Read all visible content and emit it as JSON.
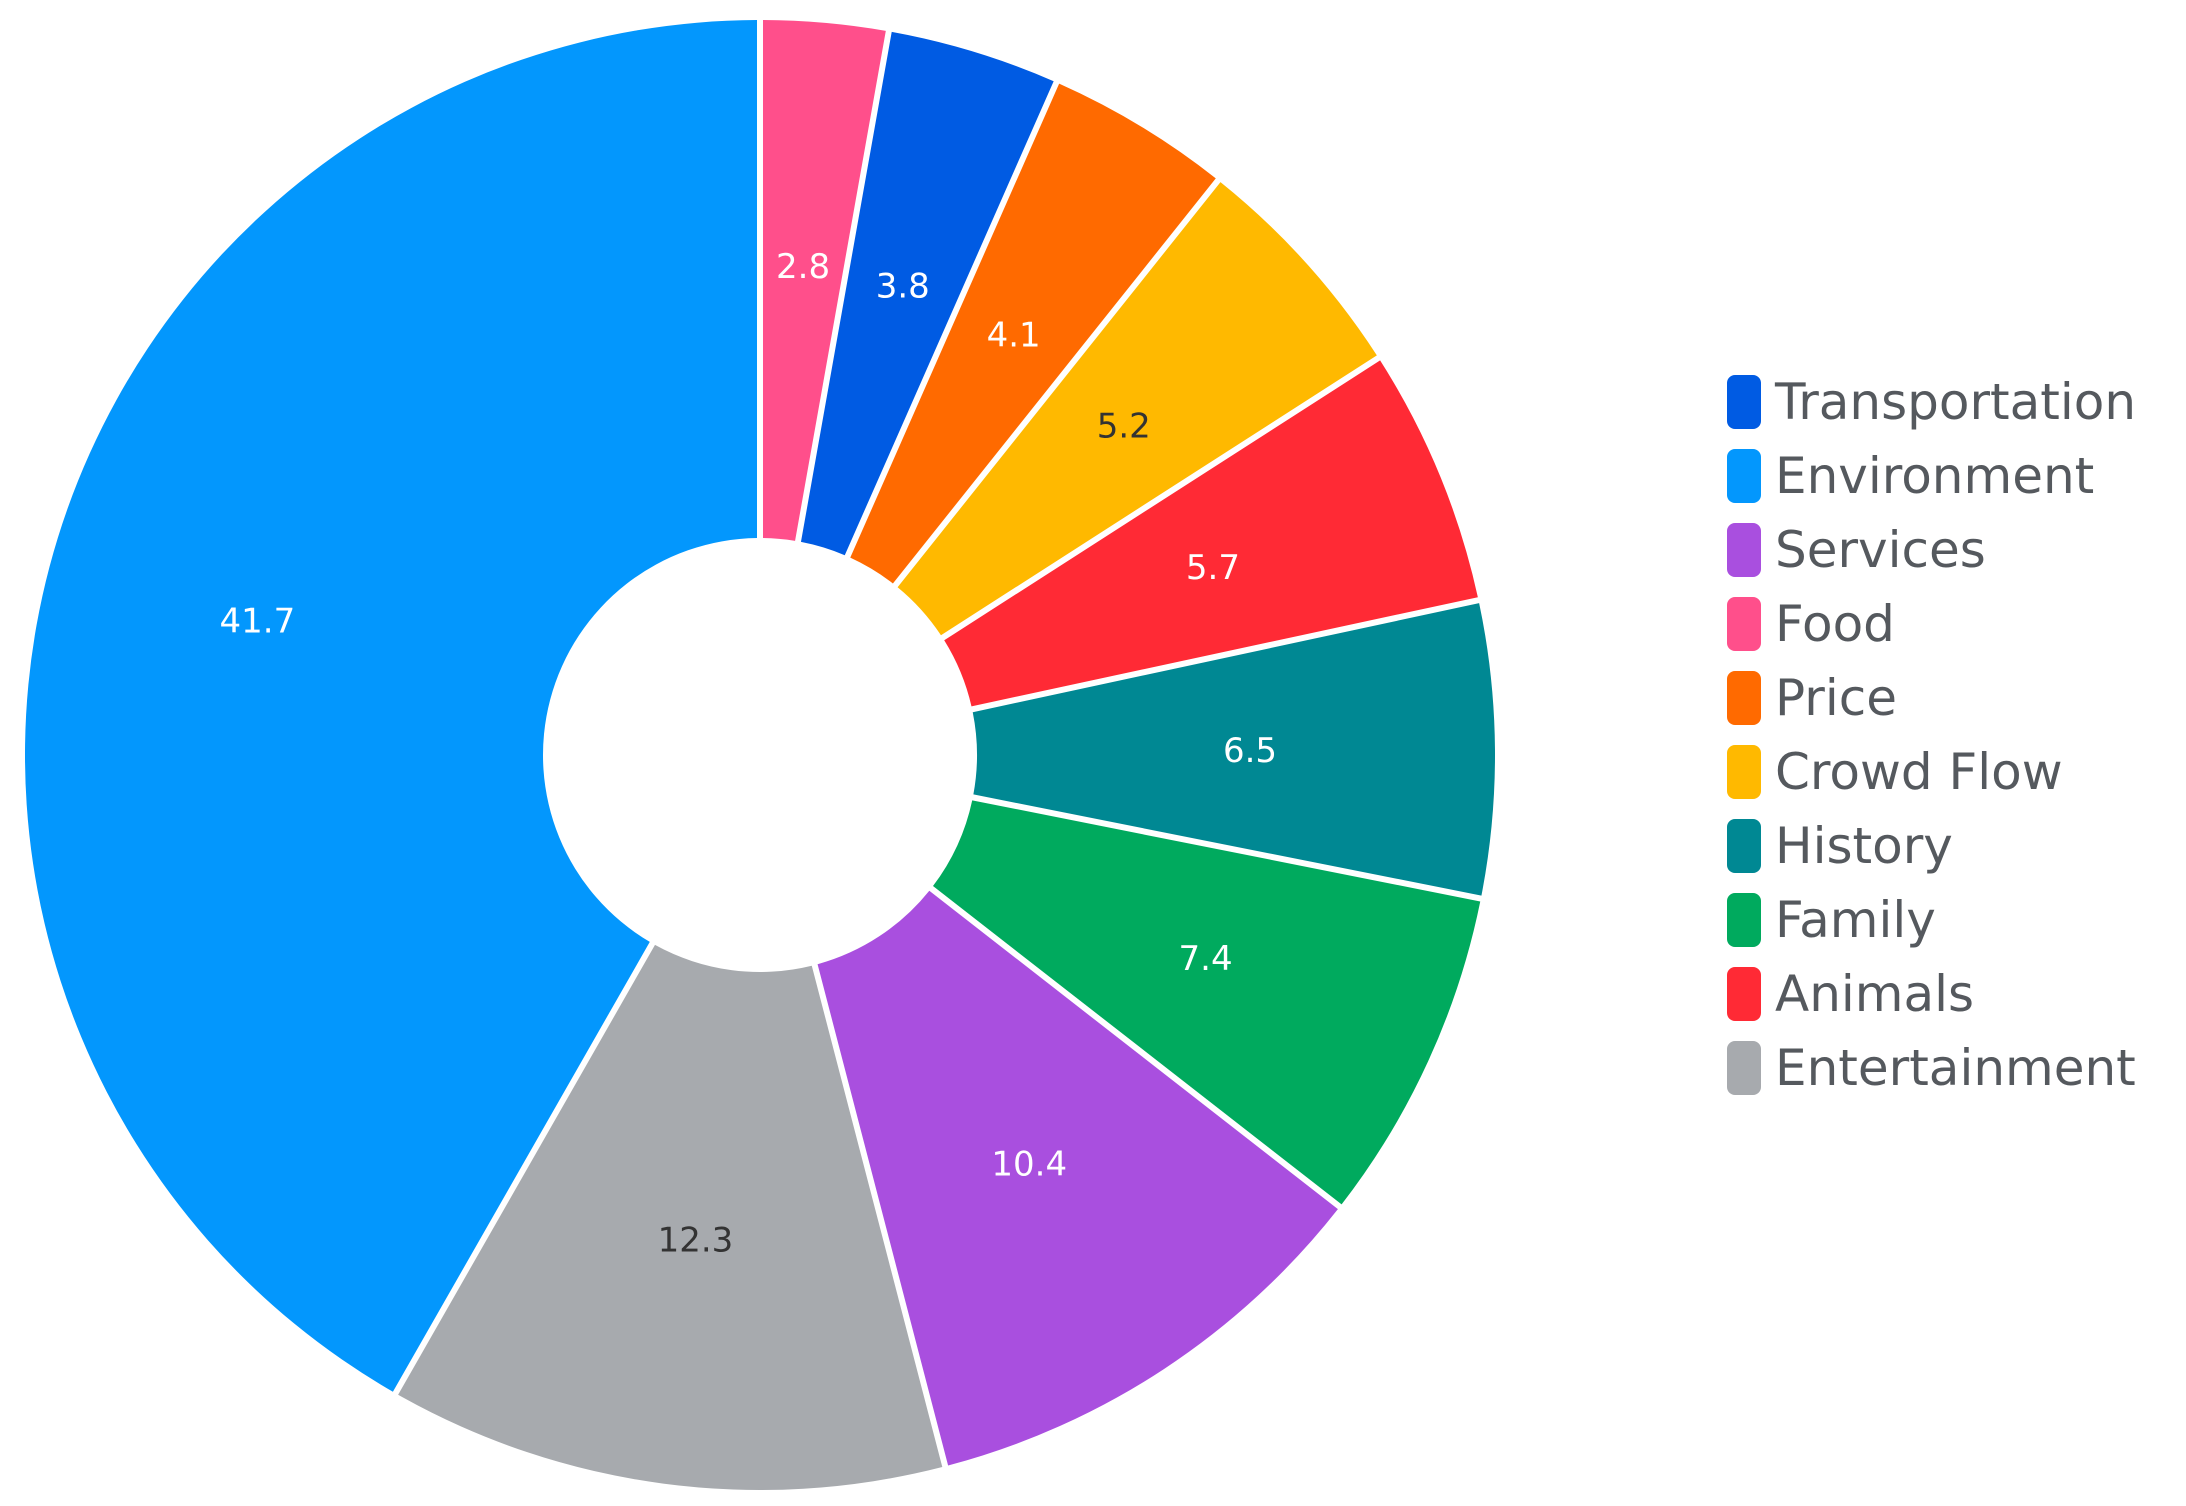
{
  "chart_data": {
    "type": "pie",
    "variant": "donut",
    "title": "",
    "start_angle_deg": 0,
    "direction": "clockwise",
    "slices": [
      {
        "label": "Food",
        "value": 2.8,
        "color": "#ff4f8b",
        "label_color": "#ffffff"
      },
      {
        "label": "Transportation",
        "value": 3.8,
        "color": "#005be3",
        "label_color": "#ffffff"
      },
      {
        "label": "Price",
        "value": 4.1,
        "color": "#ff6a00",
        "label_color": "#ffffff"
      },
      {
        "label": "Crowd Flow",
        "value": 5.2,
        "color": "#ffb900",
        "label_color": "#333333"
      },
      {
        "label": "Animals",
        "value": 5.7,
        "color": "#ff2a35",
        "label_color": "#ffffff"
      },
      {
        "label": "History",
        "value": 6.5,
        "color": "#008893",
        "label_color": "#ffffff"
      },
      {
        "label": "Family",
        "value": 7.4,
        "color": "#00aa5e",
        "label_color": "#ffffff"
      },
      {
        "label": "Services",
        "value": 10.4,
        "color": "#a94fdf",
        "label_color": "#ffffff"
      },
      {
        "label": "Entertainment",
        "value": 12.3,
        "color": "#a7aaae",
        "label_color": "#333333"
      },
      {
        "label": "Environment",
        "value": 41.7,
        "color": "#0397fd",
        "label_color": "#ffffff"
      }
    ],
    "legend": {
      "placement": "right",
      "entries": [
        {
          "label": "Transportation",
          "color": "#005be3"
        },
        {
          "label": "Environment",
          "color": "#0397fd"
        },
        {
          "label": "Services",
          "color": "#a94fdf"
        },
        {
          "label": "Food",
          "color": "#ff4f8b"
        },
        {
          "label": "Price",
          "color": "#ff6a00"
        },
        {
          "label": "Crowd Flow",
          "color": "#ffb900"
        },
        {
          "label": "History",
          "color": "#008893"
        },
        {
          "label": "Family",
          "color": "#00aa5e"
        },
        {
          "label": "Animals",
          "color": "#ff2a35"
        },
        {
          "label": "Entertainment",
          "color": "#a7aaae"
        }
      ]
    }
  }
}
